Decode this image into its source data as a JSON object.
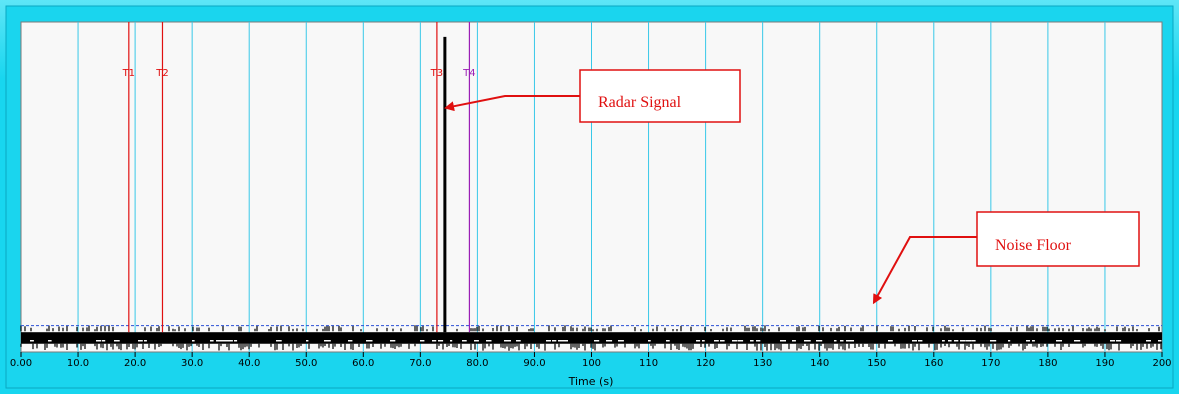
{
  "chart_data": {
    "type": "line",
    "xlabel": "Time (s)",
    "xlim": [
      0,
      200
    ],
    "x_ticks": [
      "0.00",
      "10.0",
      "20.0",
      "30.0",
      "40.0",
      "50.0",
      "60.0",
      "70.0",
      "80.0",
      "90.0",
      "100",
      "110",
      "120",
      "130",
      "140",
      "150",
      "160",
      "170",
      "180",
      "190",
      "200"
    ],
    "grid": true,
    "markers": [
      {
        "label": "T1",
        "x": 18.9,
        "color": "#e01010"
      },
      {
        "label": "T2",
        "x": 24.8,
        "color": "#e01010"
      },
      {
        "label": "T3",
        "x": 72.9,
        "color": "#e01010"
      },
      {
        "label": "T4",
        "x": 78.6,
        "color": "#9b1fb5"
      }
    ],
    "signal": {
      "x": 74.3,
      "level": 0.955
    },
    "noise_floor_level": 0.08,
    "noise_band": [
      0.025,
      0.06
    ],
    "annotations": [
      {
        "label": "Radar Signal",
        "target_x": 74.5,
        "target_level": 0.74
      },
      {
        "label": "Noise Floor",
        "target_x": 149.5,
        "target_level": 0.15
      }
    ]
  },
  "colors": {
    "plot_bg": "#f8f8f8",
    "grid": "#38c8e8",
    "marker_red": "#e01010",
    "marker_purple": "#9b1fb5",
    "signal": "#000000",
    "noise_line": "#2a4fd6",
    "annotation": "#e01010"
  }
}
